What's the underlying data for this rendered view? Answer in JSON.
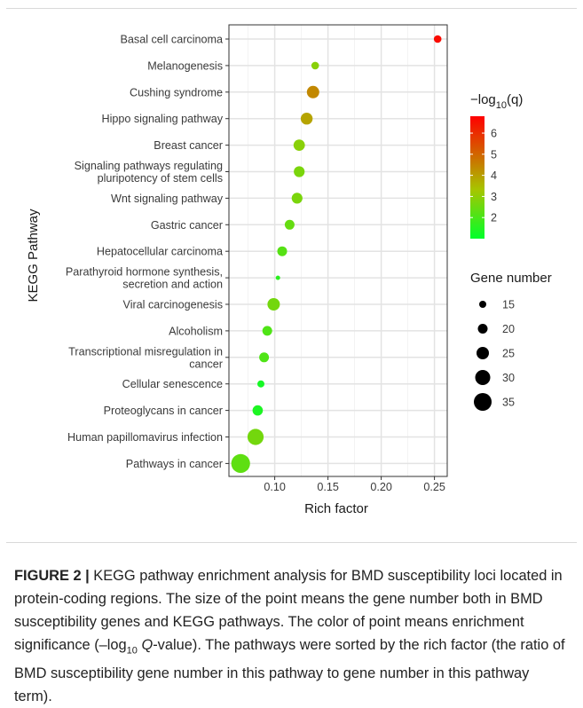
{
  "chart_data": {
    "type": "scatter",
    "xlabel": "Rich factor",
    "ylabel": "KEGG Pathway",
    "xlim": [
      0.057,
      0.262
    ],
    "xticks": [
      0.1,
      0.15,
      0.2,
      0.25
    ],
    "xtick_labels": [
      "0.10",
      "0.15",
      "0.20",
      "0.25"
    ],
    "grid": true,
    "categories": [
      [
        "Basal cell carcinoma"
      ],
      [
        "Melanogenesis"
      ],
      [
        "Cushing syndrome"
      ],
      [
        "Hippo signaling pathway"
      ],
      [
        "Breast cancer"
      ],
      [
        "Signaling pathways regulating",
        "pluripotency of stem cells"
      ],
      [
        "Wnt signaling pathway"
      ],
      [
        "Gastric cancer"
      ],
      [
        "Hepatocellular carcinoma"
      ],
      [
        "Parathyroid hormone synthesis,",
        "secretion and action"
      ],
      [
        "Viral carcinogenesis"
      ],
      [
        "Alcoholism"
      ],
      [
        "Transcriptional misregulation in",
        "cancer"
      ],
      [
        "Cellular senescence"
      ],
      [
        "Proteoglycans in cancer"
      ],
      [
        "Human papillomavirus infection"
      ],
      [
        "Pathways in cancer"
      ]
    ],
    "points": [
      {
        "x": 0.253,
        "gene_number": 16,
        "neglog10q": 6.6
      },
      {
        "x": 0.138,
        "gene_number": 16,
        "neglog10q": 2.9
      },
      {
        "x": 0.136,
        "gene_number": 25,
        "neglog10q": 4.4
      },
      {
        "x": 0.13,
        "gene_number": 24,
        "neglog10q": 3.9
      },
      {
        "x": 0.123,
        "gene_number": 23,
        "neglog10q": 2.9
      },
      {
        "x": 0.123,
        "gene_number": 22,
        "neglog10q": 2.7
      },
      {
        "x": 0.121,
        "gene_number": 22,
        "neglog10q": 2.7
      },
      {
        "x": 0.114,
        "gene_number": 20,
        "neglog10q": 2.4
      },
      {
        "x": 0.107,
        "gene_number": 20,
        "neglog10q": 2.2
      },
      {
        "x": 0.103,
        "gene_number": 10,
        "neglog10q": 1.6
      },
      {
        "x": 0.099,
        "gene_number": 25,
        "neglog10q": 2.6
      },
      {
        "x": 0.093,
        "gene_number": 20,
        "neglog10q": 2.1
      },
      {
        "x": 0.09,
        "gene_number": 20,
        "neglog10q": 2.1
      },
      {
        "x": 0.087,
        "gene_number": 15,
        "neglog10q": 1.3
      },
      {
        "x": 0.084,
        "gene_number": 21,
        "neglog10q": 1.4
      },
      {
        "x": 0.082,
        "gene_number": 32,
        "neglog10q": 2.6
      },
      {
        "x": 0.068,
        "gene_number": 37,
        "neglog10q": 2.3
      }
    ],
    "color_legend": {
      "title_prefix": "−log",
      "title_sub": "10",
      "title_suffix": "(q)",
      "range": [
        1.0,
        6.8
      ],
      "ticks": [
        2,
        3,
        4,
        5,
        6
      ],
      "tick_labels": [
        "2",
        "3",
        "4",
        "5",
        "6"
      ],
      "low_color": "#00ff2a",
      "mid_color": "#a7c500",
      "high_color": "#ff0000"
    },
    "size_legend": {
      "title": "Gene number",
      "values": [
        15,
        20,
        25,
        30,
        35
      ],
      "labels": [
        "15",
        "20",
        "25",
        "30",
        "35"
      ]
    },
    "legend_position": "right"
  },
  "caption": {
    "label": "FIGURE 2 |",
    "text": " KEGG pathway enrichment analysis for BMD susceptibility loci located in protein-coding regions. The size of the point means the gene number both in BMD susceptibility genes and KEGG pathways. The color of point means enrichment significance (–log",
    "sub": "10",
    "q_italic": "Q",
    "text_end": "-value). The pathways were sorted by the rich factor (the ratio of BMD susceptibility gene number in this pathway to gene number in this pathway term)."
  }
}
